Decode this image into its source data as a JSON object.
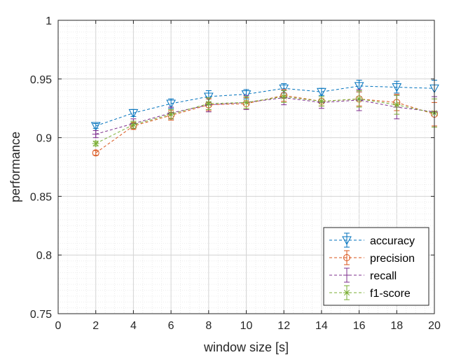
{
  "chart_data": {
    "type": "line",
    "xlabel": "window size [s]",
    "ylabel": "performance",
    "xlim": [
      0,
      20
    ],
    "ylim": [
      0.75,
      1
    ],
    "x_ticks": [
      "0",
      "2",
      "4",
      "6",
      "8",
      "10",
      "12",
      "14",
      "16",
      "18",
      "20"
    ],
    "y_ticks": [
      "0.75",
      "0.8",
      "0.85",
      "0.9",
      "0.95",
      "1"
    ],
    "grid": "major and minor",
    "legend_position": "bottom-right",
    "x": [
      2,
      4,
      6,
      8,
      10,
      12,
      14,
      16,
      18,
      20
    ],
    "series": [
      {
        "name": "accuracy",
        "color": "#0072BD",
        "marker": "triangle-down",
        "values": [
          0.91,
          0.921,
          0.929,
          0.935,
          0.937,
          0.942,
          0.939,
          0.944,
          0.943,
          0.942
        ],
        "errors": [
          0.002,
          0.003,
          0.004,
          0.005,
          0.004,
          0.004,
          0.003,
          0.005,
          0.005,
          0.007
        ]
      },
      {
        "name": "precision",
        "color": "#D95319",
        "marker": "circle",
        "values": [
          0.887,
          0.91,
          0.919,
          0.928,
          0.929,
          0.936,
          0.931,
          0.933,
          0.93,
          0.92
        ],
        "errors": [
          0.002,
          0.003,
          0.004,
          0.005,
          0.005,
          0.005,
          0.004,
          0.006,
          0.007,
          0.01
        ]
      },
      {
        "name": "recall",
        "color": "#7E2F8E",
        "marker": "plus",
        "values": [
          0.903,
          0.912,
          0.921,
          0.928,
          0.93,
          0.934,
          0.93,
          0.932,
          0.926,
          0.922
        ],
        "errors": [
          0.003,
          0.004,
          0.005,
          0.006,
          0.006,
          0.006,
          0.005,
          0.009,
          0.01,
          0.013
        ]
      },
      {
        "name": "f1-score",
        "color": "#77AC30",
        "marker": "asterisk",
        "values": [
          0.895,
          0.911,
          0.92,
          0.929,
          0.93,
          0.935,
          0.931,
          0.933,
          0.928,
          0.921
        ],
        "errors": [
          0.002,
          0.003,
          0.004,
          0.005,
          0.005,
          0.005,
          0.004,
          0.007,
          0.008,
          0.012
        ]
      }
    ]
  }
}
